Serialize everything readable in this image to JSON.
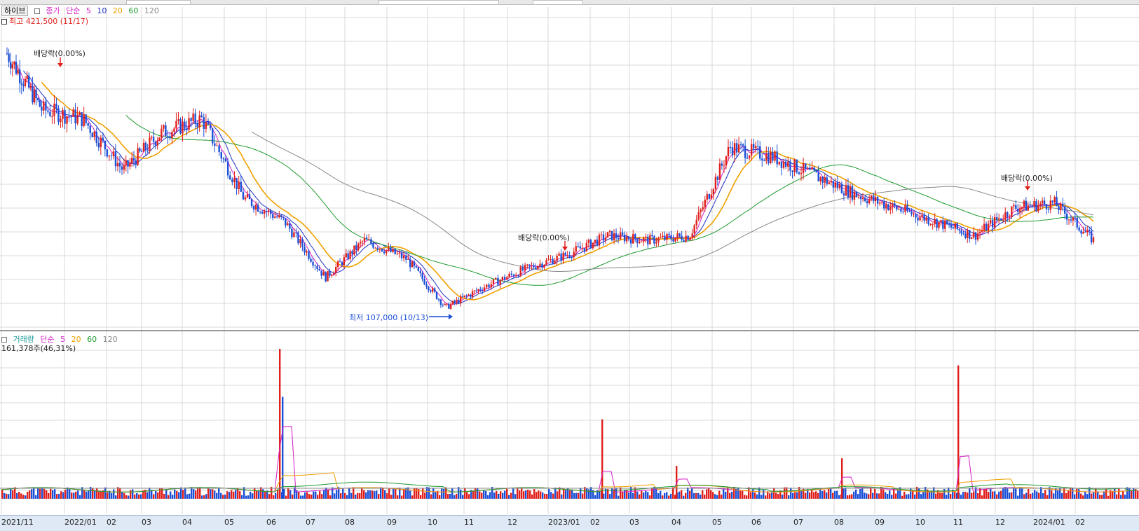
{
  "stock_name": "하이브",
  "price_legend": {
    "label": "종가",
    "method": "단순",
    "periods": [
      "5",
      "10",
      "20",
      "60",
      "120"
    ]
  },
  "volume_legend": {
    "label": "거래량",
    "method": "단순",
    "periods": [
      "5",
      "20",
      "60",
      "120"
    ]
  },
  "annotations": {
    "high": "최고 421,500 (11/17)",
    "low": "최저 107,000 (10/13)",
    "dividends": [
      "배당락(0.00%)",
      "배당락(0.00%)",
      "배당락(0.00%)"
    ],
    "volume_info": "161,378주(46,31%)"
  },
  "colors": {
    "up": "#e0201c",
    "down": "#1b4fd6",
    "ma5": "#d61fc6",
    "ma10": "#1f2fbf",
    "ma20": "#f0a000",
    "ma60": "#1e9a2e",
    "ma120": "#888888",
    "grid": "#d9d9d9",
    "axis_bg": "#dfe9f5"
  },
  "chart_data": [
    {
      "type": "line",
      "title": "하이브",
      "series_type": "candlestick with moving averages",
      "x_ticks": [
        "2021/11",
        "2022/01",
        "02",
        "03",
        "04",
        "05",
        "06",
        "07",
        "08",
        "09",
        "10",
        "11",
        "12",
        "2023/01",
        "02",
        "03",
        "04",
        "05",
        "06",
        "07",
        "08",
        "09",
        "10",
        "11",
        "12",
        "2024/01",
        "02"
      ],
      "ylim": [
        100000,
        430000
      ],
      "grid": true,
      "series": [
        {
          "name": "종가",
          "x": [
            "2021/11",
            "2021/12",
            "2022/01",
            "2022/02",
            "2022/03",
            "2022/04",
            "2022/05",
            "2022/06",
            "2022/07",
            "2022/08",
            "2022/09",
            "2022/10",
            "2022/11",
            "2022/12",
            "2023/01",
            "2023/02",
            "2023/03",
            "2023/04",
            "2023/05",
            "2023/06",
            "2023/07",
            "2023/08",
            "2023/09",
            "2023/10",
            "2023/11",
            "2023/12",
            "2024/01",
            "2024/02"
          ],
          "values": [
            390000,
            330000,
            320000,
            265000,
            305000,
            320000,
            235000,
            210000,
            150000,
            190000,
            170000,
            118000,
            140000,
            160000,
            175000,
            195000,
            190000,
            195000,
            290000,
            280000,
            260000,
            240000,
            225000,
            210000,
            195000,
            225000,
            230000,
            190000
          ]
        },
        {
          "name": "60",
          "x": [
            "2022/02",
            "2022/04",
            "2022/06",
            "2022/08",
            "2022/10",
            "2022/12",
            "2023/02",
            "2023/04",
            "2023/06",
            "2023/08",
            "2023/10",
            "2023/12",
            "2024/02"
          ],
          "values": [
            320000,
            300000,
            265000,
            205000,
            175000,
            150000,
            165000,
            190000,
            225000,
            258000,
            240000,
            215000,
            215000
          ]
        },
        {
          "name": "120",
          "x": [
            "2022/05",
            "2022/07",
            "2022/09",
            "2022/11",
            "2023/01",
            "2023/03",
            "2023/05",
            "2023/07",
            "2023/09",
            "2023/11",
            "2024/01",
            "2024/02"
          ],
          "values": [
            295000,
            255000,
            210000,
            175000,
            160000,
            162000,
            175000,
            220000,
            248000,
            238000,
            222000,
            220000
          ]
        }
      ],
      "high": {
        "value": 421500,
        "date": "11/17"
      },
      "low": {
        "value": 107000,
        "date": "10/13"
      }
    },
    {
      "type": "bar",
      "title": "거래량",
      "x_ticks": [
        "2021/11",
        "2022/01",
        "02",
        "03",
        "04",
        "05",
        "06",
        "07",
        "08",
        "09",
        "10",
        "11",
        "12",
        "2023/01",
        "02",
        "03",
        "04",
        "05",
        "06",
        "07",
        "08",
        "09",
        "10",
        "11",
        "12",
        "2024/01",
        "02"
      ],
      "series": [
        {
          "name": "거래량",
          "spikes": [
            {
              "x": "2022/06",
              "value": 100
            },
            {
              "x": "2022/06",
              "value": 68
            },
            {
              "x": "2023/02",
              "value": 53
            },
            {
              "x": "2023/11",
              "value": 89
            },
            {
              "x": "2023/08",
              "value": 27
            },
            {
              "x": "2023/04",
              "value": 22
            }
          ]
        }
      ],
      "ylim": [
        0,
        100
      ],
      "grid": true
    }
  ]
}
